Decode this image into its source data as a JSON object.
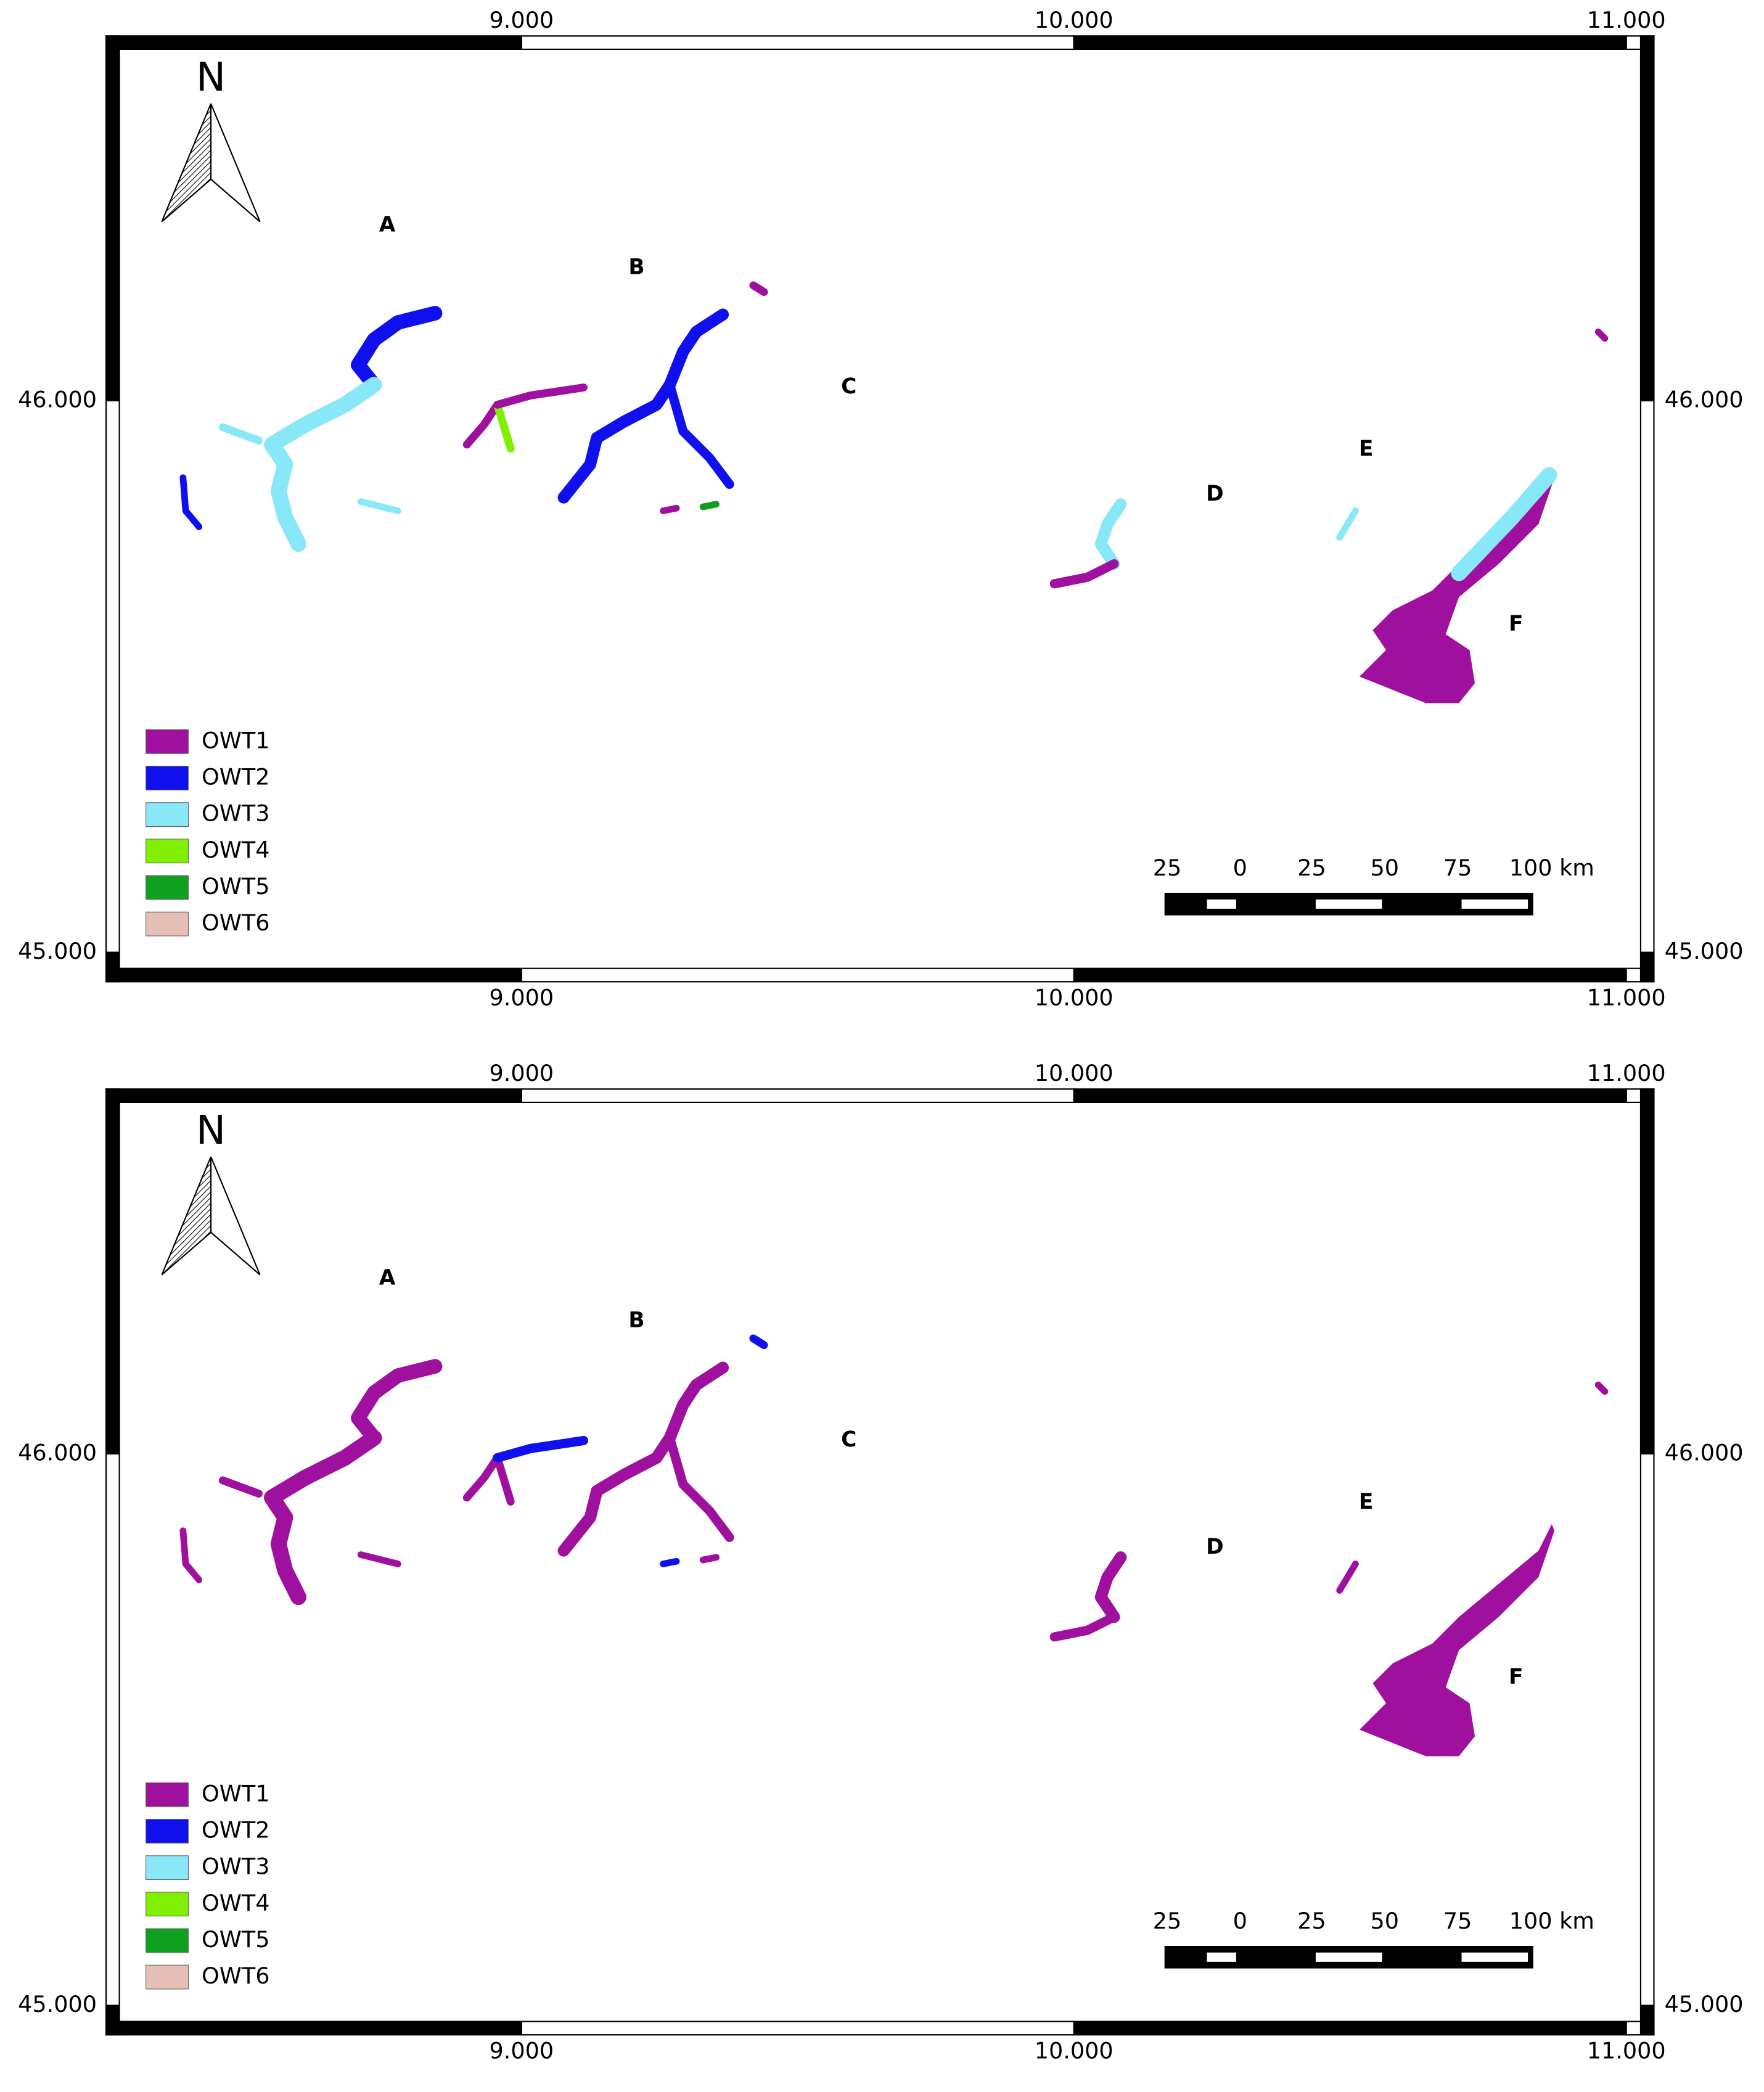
{
  "maps": [
    {
      "xlim": [
        8.248,
        11.05
      ],
      "ylim": [
        44.947,
        46.661
      ],
      "xticks": [
        {
          "value": 9,
          "label": "9.000"
        },
        {
          "value": 10,
          "label": "10.000"
        },
        {
          "value": 11,
          "label": "11.000"
        }
      ],
      "yticks": [
        {
          "value": 46,
          "label": "46.000"
        },
        {
          "value": 45,
          "label": "45.000"
        }
      ],
      "north": "N",
      "lake_labels": [
        "A",
        "B",
        "C",
        "D",
        "E",
        "F"
      ],
      "legend": [
        {
          "name": "OWT1",
          "color": "#a0109e"
        },
        {
          "name": "OWT2",
          "color": "#1010ee"
        },
        {
          "name": "OWT3",
          "color": "#88e8f8"
        },
        {
          "name": "OWT4",
          "color": "#80f000"
        },
        {
          "name": "OWT5",
          "color": "#10a020"
        },
        {
          "name": "OWT6",
          "color": "#e6c0b6"
        }
      ],
      "scale_bar": [
        "25",
        "0",
        "25",
        "50",
        "75",
        "100 km"
      ]
    },
    {
      "xlim": [
        8.248,
        11.05
      ],
      "ylim": [
        44.947,
        46.661
      ],
      "xticks": [
        {
          "value": 9,
          "label": "9.000"
        },
        {
          "value": 10,
          "label": "10.000"
        },
        {
          "value": 11,
          "label": "11.000"
        }
      ],
      "yticks": [
        {
          "value": 46,
          "label": "46.000"
        },
        {
          "value": 45,
          "label": "45.000"
        }
      ],
      "north": "N",
      "lake_labels": [
        "A",
        "B",
        "C",
        "D",
        "E",
        "F"
      ],
      "legend": [
        {
          "name": "OWT1",
          "color": "#a0109e"
        },
        {
          "name": "OWT2",
          "color": "#1010ee"
        },
        {
          "name": "OWT3",
          "color": "#88e8f8"
        },
        {
          "name": "OWT4",
          "color": "#80f000"
        },
        {
          "name": "OWT5",
          "color": "#10a020"
        },
        {
          "name": "OWT6",
          "color": "#e6c0b6"
        }
      ],
      "scale_bar": [
        "25",
        "0",
        "25",
        "50",
        "75",
        "100 km"
      ]
    }
  ]
}
